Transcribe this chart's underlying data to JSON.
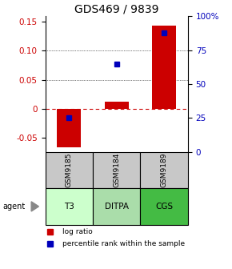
{
  "title": "GDS469 / 9839",
  "samples": [
    "GSM9185",
    "GSM9184",
    "GSM9189"
  ],
  "agents": [
    "T3",
    "DITPA",
    "CGS"
  ],
  "log_ratios": [
    -0.067,
    0.012,
    0.143
  ],
  "percentile_ranks": [
    0.25,
    0.65,
    0.88
  ],
  "ylim_left": [
    -0.075,
    0.16
  ],
  "ylim_right": [
    0.0,
    1.0
  ],
  "yticks_left": [
    -0.05,
    0.0,
    0.05,
    0.1,
    0.15
  ],
  "ytick_labels_left": [
    "-0.05",
    "0",
    "0.05",
    "0.10",
    "0.15"
  ],
  "yticks_right": [
    0.0,
    0.25,
    0.5,
    0.75,
    1.0
  ],
  "ytick_labels_right": [
    "0",
    "25",
    "50",
    "75",
    "100%"
  ],
  "bar_color": "#cc0000",
  "dot_color": "#0000bb",
  "sample_box_color": "#c8c8c8",
  "agent_colors": [
    "#ccffcc",
    "#aaddaa",
    "#44bb44"
  ],
  "zero_line_color": "#cc0000",
  "legend_bar_label": "log ratio",
  "legend_dot_label": "percentile rank within the sample",
  "agent_label": "agent",
  "background_color": "#ffffff",
  "title_fontsize": 10,
  "tick_fontsize": 7.5,
  "label_fontsize": 7
}
